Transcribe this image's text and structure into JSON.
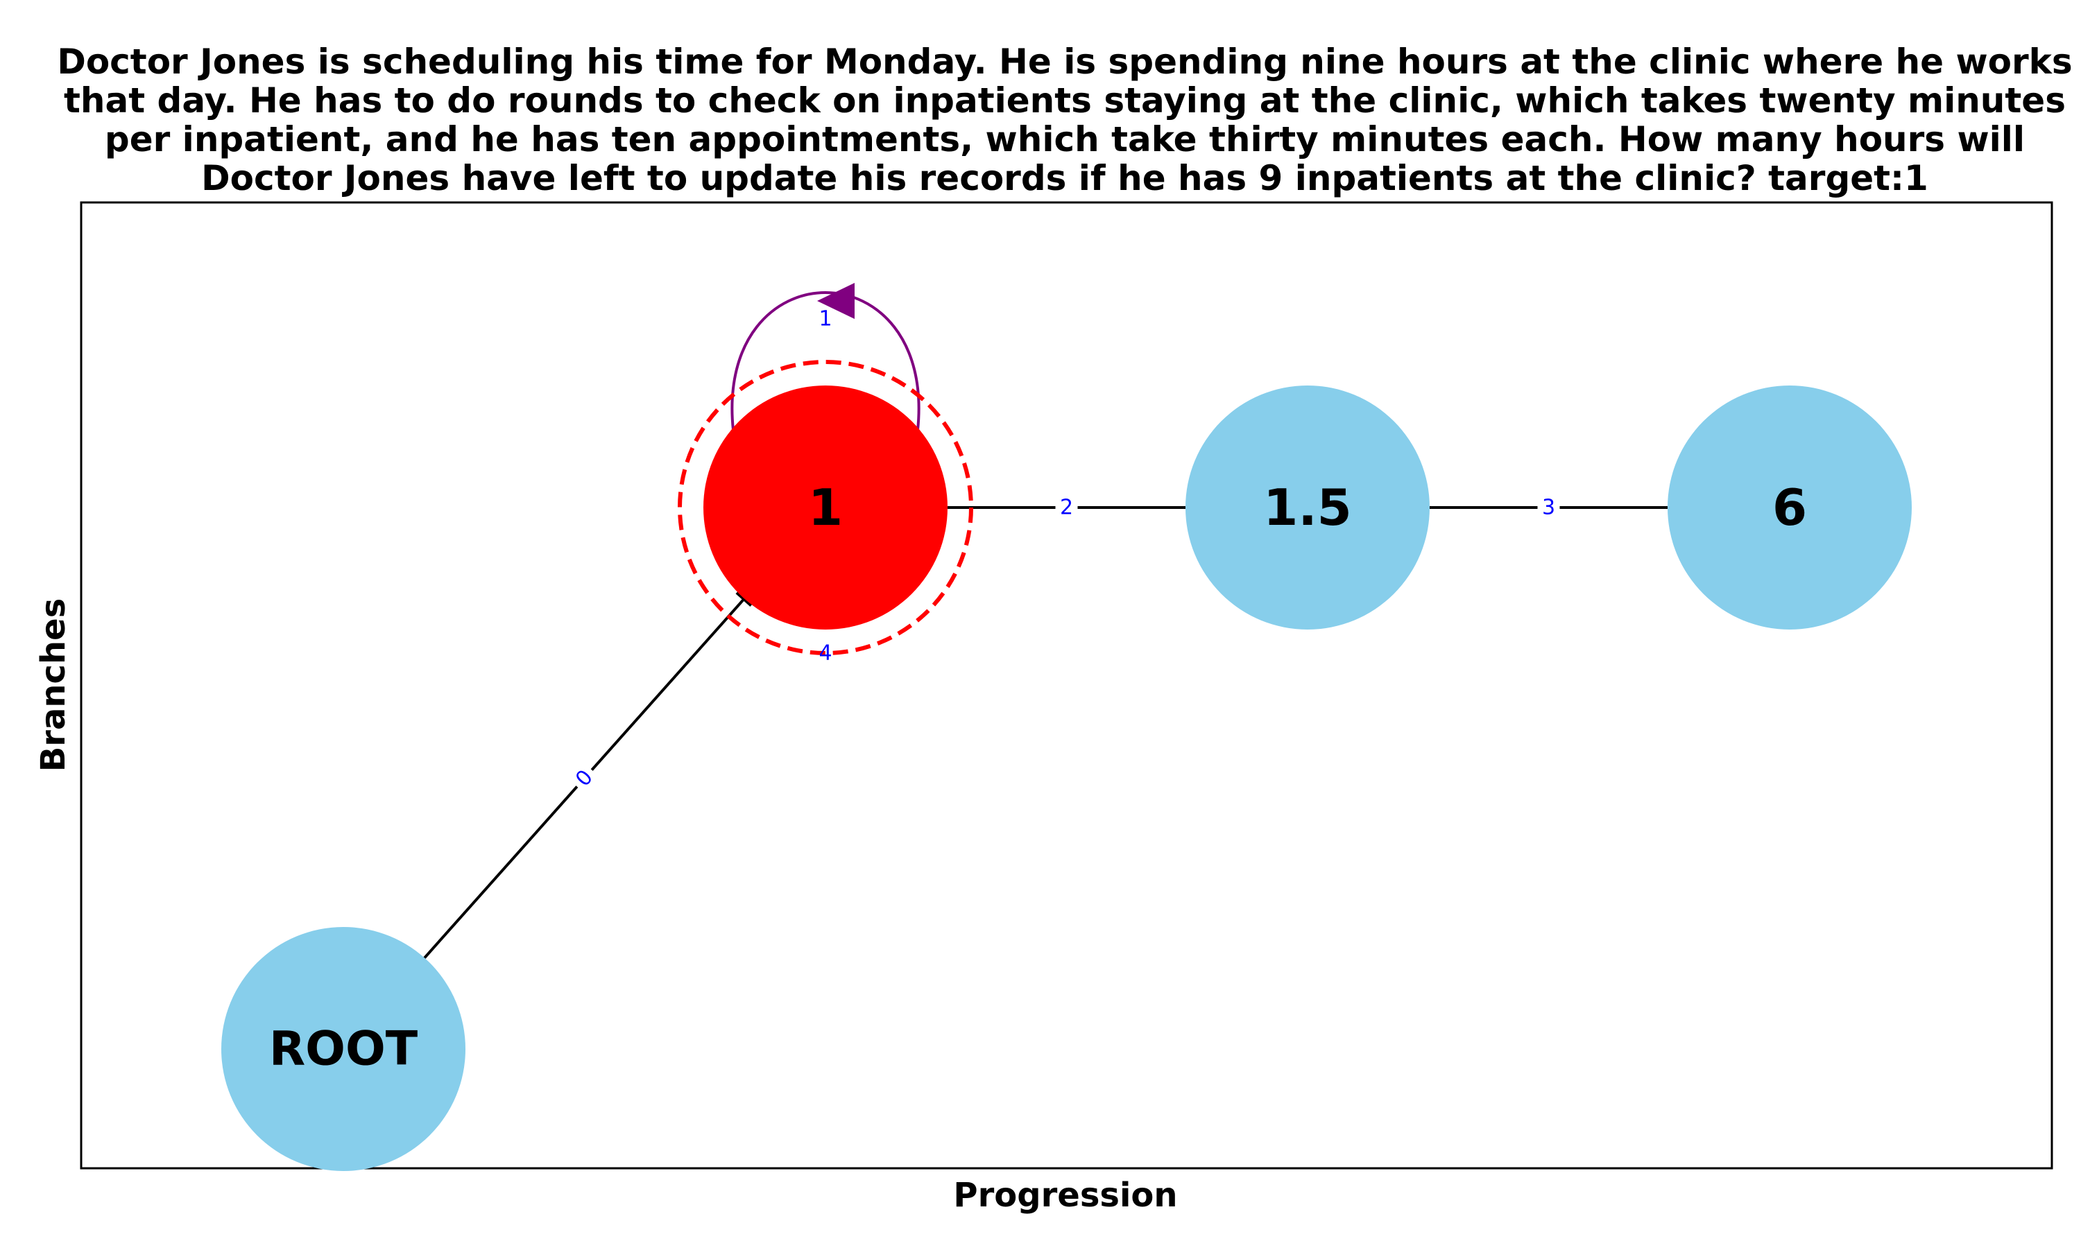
{
  "title": {
    "lines": [
      "Doctor Jones is scheduling his time for Monday. He is spending nine hours at the clinic where he works",
      "that day. He has to do rounds to check on inpatients staying at the clinic, which takes twenty minutes",
      "per inpatient, and he has ten appointments, which take thirty minutes each. How many hours will",
      "Doctor Jones have left to update his records if he has 9 inpatients at the clinic? target:1"
    ]
  },
  "axes": {
    "xlabel": "Progression",
    "ylabel": "Branches"
  },
  "colors": {
    "node_default": "#87ceeb",
    "node_highlight": "#ff0000",
    "highlight_ring": "#ff0000",
    "edge": "#000000",
    "self_loop": "#800080",
    "edge_label": "#0000ff"
  },
  "nodes": [
    {
      "id": "root",
      "label": "ROOT",
      "highlight": false
    },
    {
      "id": "n1",
      "label": "1",
      "highlight": true
    },
    {
      "id": "n15",
      "label": "1.5",
      "highlight": false
    },
    {
      "id": "n6",
      "label": "6",
      "highlight": false
    }
  ],
  "edges": [
    {
      "from": "root",
      "to": "n1",
      "label": "0",
      "kind": "arrow"
    },
    {
      "from": "n1",
      "to": "n1",
      "label": "1",
      "kind": "self-loop"
    },
    {
      "from": "n1",
      "to": "n15",
      "label": "2",
      "kind": "line"
    },
    {
      "from": "n15",
      "to": "n6",
      "label": "3",
      "kind": "line"
    },
    {
      "from": "n1",
      "to": "n1",
      "label": "4",
      "kind": "highlight-ring"
    }
  ]
}
